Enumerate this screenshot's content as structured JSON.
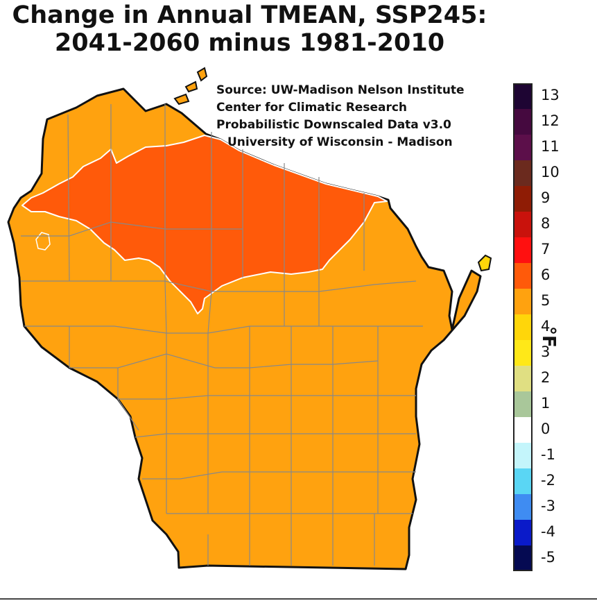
{
  "title": {
    "line1": "Change in Annual TMEAN, SSP245:",
    "line2": "2041-2060 minus 1981-2010"
  },
  "source": {
    "line1": "Source: UW-Madison Nelson Institute",
    "line2": "Center for Climatic Research",
    "line3": "Probabilistic Downscaled Data v3.0",
    "line4": "University of Wisconsin - Madison"
  },
  "legend": {
    "unit": "°F",
    "items": [
      {
        "label": "13",
        "color": "#1e0533"
      },
      {
        "label": "12",
        "color": "#45093f"
      },
      {
        "label": "11",
        "color": "#5c0f4a"
      },
      {
        "label": "10",
        "color": "#6b2a1e"
      },
      {
        "label": "9",
        "color": "#8f1c05"
      },
      {
        "label": "8",
        "color": "#c9120c"
      },
      {
        "label": "7",
        "color": "#ff1010"
      },
      {
        "label": "6",
        "color": "#ff5a0a"
      },
      {
        "label": "5",
        "color": "#ffa20f"
      },
      {
        "label": "4",
        "color": "#ffd60a"
      },
      {
        "label": "3",
        "color": "#ffe818"
      },
      {
        "label": "2",
        "color": "#e0df82"
      },
      {
        "label": "1",
        "color": "#a9c79a"
      },
      {
        "label": "0",
        "color": "#ffffff"
      },
      {
        "label": "-1",
        "color": "#c4f5fb"
      },
      {
        "label": "-2",
        "color": "#5ad6f4"
      },
      {
        "label": "-3",
        "color": "#3f8cf2"
      },
      {
        "label": "-4",
        "color": "#0a1ac9"
      },
      {
        "label": "-5",
        "color": "#050a52"
      }
    ]
  },
  "map": {
    "regions": [
      {
        "name": "state-base",
        "value": 5,
        "color": "#ffa20f"
      },
      {
        "name": "northern-band",
        "value": 6,
        "color": "#ff5a0a"
      },
      {
        "name": "door-peninsula-tip",
        "value": 4,
        "color": "#ffd60a"
      }
    ]
  }
}
